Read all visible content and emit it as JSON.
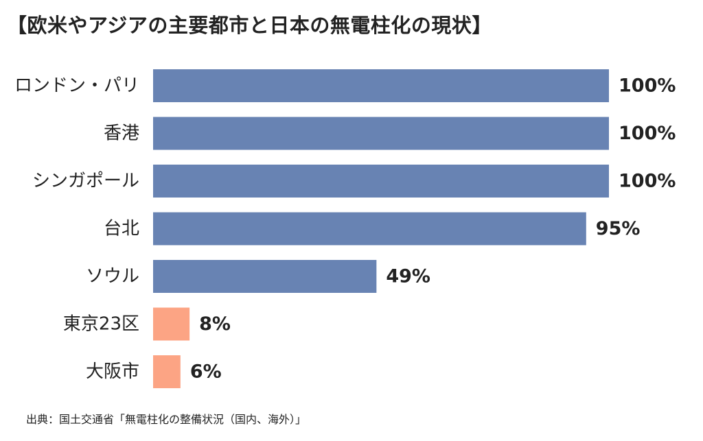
{
  "chart_data": {
    "type": "bar",
    "orientation": "horizontal",
    "title": "【欧米やアジアの主要都市と日本の無電柱化の現状】",
    "categories": [
      "ロンドン・パリ",
      "香港",
      "シンガポール",
      "台北",
      "ソウル",
      "東京23区",
      "大阪市"
    ],
    "values": [
      100,
      100,
      100,
      95,
      49,
      8,
      6
    ],
    "value_labels": [
      "100%",
      "100%",
      "100%",
      "95%",
      "49%",
      "8%",
      "6%"
    ],
    "xlim": [
      0,
      100
    ],
    "grid": false,
    "legend": "none",
    "bar_colors": [
      "#6883b3",
      "#6883b3",
      "#6883b3",
      "#6883b3",
      "#6883b3",
      "#fca484",
      "#fca484"
    ],
    "source": "出典：国土交通省「無電柱化の整備状況（国内、海外）」"
  }
}
